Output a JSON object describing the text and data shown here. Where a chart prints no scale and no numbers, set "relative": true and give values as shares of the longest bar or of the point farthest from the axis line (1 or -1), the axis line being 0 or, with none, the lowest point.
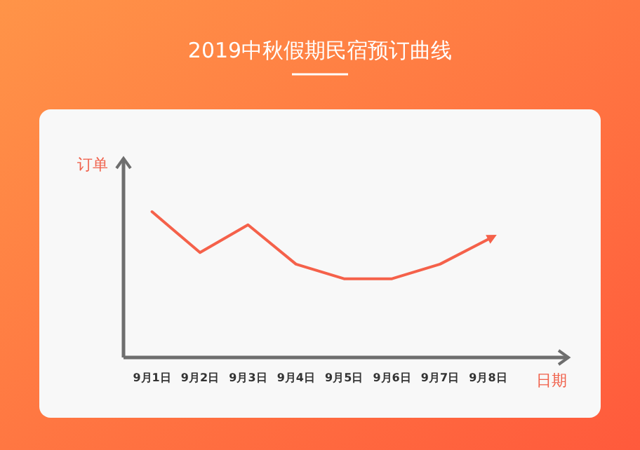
{
  "chart_data": {
    "type": "line",
    "title": "2019中秋假期民宿预订曲线",
    "xlabel": "日期",
    "ylabel": "订单",
    "relative": true,
    "categories": [
      "9月1日",
      "9月2日",
      "9月3日",
      "9月4日",
      "9月5日",
      "9月6日",
      "9月7日",
      "9月8日"
    ],
    "series": [
      {
        "color": "#f5614a",
        "values": [
          1,
          0.72,
          0.91,
          0.64,
          0.54,
          0.54,
          0.64,
          0.81
        ]
      }
    ]
  }
}
